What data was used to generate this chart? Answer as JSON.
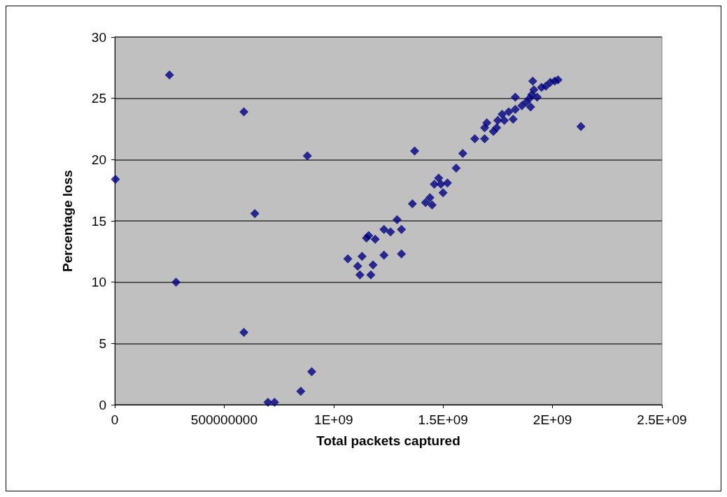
{
  "chart_data": {
    "type": "scatter",
    "xlabel": "Total packets captured",
    "ylabel": "Percentage loss",
    "x": [
      3000000,
      250000000,
      280000000,
      590000000,
      590000000,
      640000000,
      700000000,
      730000000,
      850000000,
      880000000,
      900000000,
      1065000000,
      1110000000,
      1130000000,
      1120000000,
      1170000000,
      1180000000,
      1150000000,
      1160000000,
      1190000000,
      1230000000,
      1230000000,
      1260000000,
      1290000000,
      1310000000,
      1310000000,
      1360000000,
      1370000000,
      1420000000,
      1440000000,
      1450000000,
      1460000000,
      1480000000,
      1490000000,
      1500000000,
      1520000000,
      1560000000,
      1590000000,
      1645000000,
      1690000000,
      1690000000,
      1700000000,
      1730000000,
      1745000000,
      1750000000,
      1770000000,
      1780000000,
      1800000000,
      1820000000,
      1830000000,
      1830000000,
      1860000000,
      1880000000,
      1895000000,
      1900000000,
      1905000000,
      1910000000,
      1915000000,
      1930000000,
      1950000000,
      1970000000,
      1990000000,
      2010000000,
      2025000000,
      2130000000
    ],
    "series": [
      {
        "color": "#000080",
        "values": [
          18.4,
          26.9,
          10.0,
          23.9,
          5.9,
          15.6,
          0.2,
          0.2,
          1.1,
          20.3,
          2.7,
          11.9,
          11.3,
          12.1,
          10.6,
          10.6,
          11.4,
          13.6,
          13.8,
          13.5,
          14.3,
          12.2,
          14.1,
          15.1,
          14.3,
          12.3,
          16.4,
          20.7,
          16.5,
          16.9,
          16.3,
          18.0,
          18.5,
          18.0,
          17.3,
          18.1,
          19.3,
          20.5,
          21.7,
          21.7,
          22.6,
          23.0,
          22.3,
          22.6,
          23.2,
          23.7,
          23.2,
          23.9,
          23.3,
          24.1,
          25.1,
          24.4,
          24.7,
          25.0,
          24.3,
          25.3,
          26.4,
          25.7,
          25.1,
          25.9,
          26.0,
          26.3,
          26.4,
          26.5,
          22.7
        ]
      }
    ],
    "xlim": [
      0,
      2500000000
    ],
    "xticks": [
      0,
      {
        "value": 500000000,
        "label": "500000000"
      },
      {
        "value": 1000000000,
        "label": "1E+09"
      },
      {
        "value": 1500000000,
        "label": "1.5E+09"
      },
      {
        "value": 2000000000,
        "label": "2E+09"
      },
      {
        "value": 2500000000,
        "label": "2.5E+09"
      }
    ],
    "ylim": [
      0,
      30
    ],
    "yticks": [
      0,
      5,
      10,
      15,
      20,
      25,
      30
    ],
    "grid": "y",
    "marker": "diamond"
  }
}
